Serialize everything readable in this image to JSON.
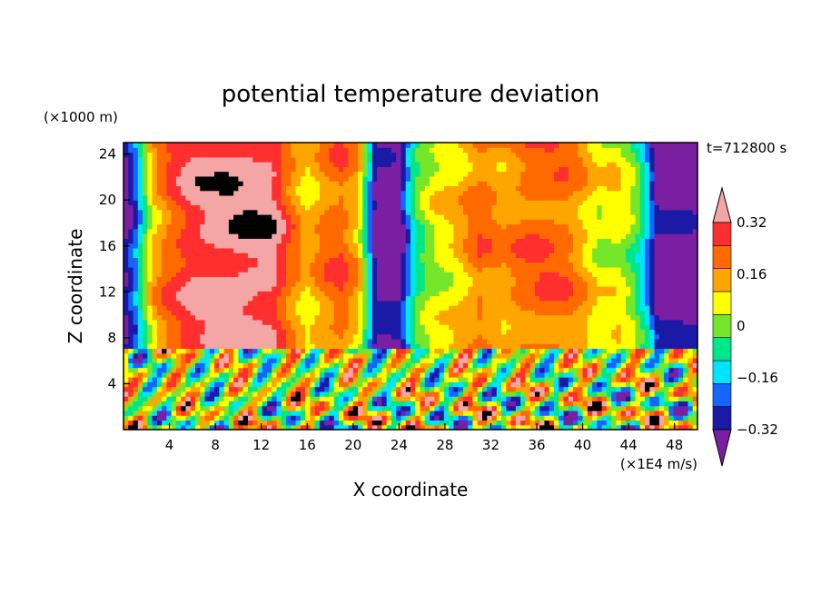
{
  "chart_data": {
    "type": "heatmap",
    "title": "potential temperature deviation",
    "xlabel": "X coordinate",
    "ylabel": "Z coordinate",
    "x_unit": "(×1E4 m/s)",
    "y_unit": "(×1000 m)",
    "time_label": "t=712800 s",
    "xlim": [
      0,
      50
    ],
    "ylim": [
      0,
      25
    ],
    "x_ticks": [
      "4",
      "8",
      "12",
      "16",
      "20",
      "24",
      "28",
      "32",
      "36",
      "40",
      "44",
      "48"
    ],
    "y_ticks": [
      "4",
      "8",
      "12",
      "16",
      "20",
      "24"
    ],
    "colorbar": {
      "levels": [
        -0.4,
        -0.32,
        -0.24,
        -0.16,
        -0.08,
        0,
        0.08,
        0.16,
        0.24,
        0.32,
        0.4
      ],
      "labels": [
        "0.32",
        "0.16",
        "0",
        "−0.16",
        "−0.32"
      ],
      "label_values": [
        0.32,
        0.16,
        0,
        -0.16,
        -0.32
      ],
      "colors": [
        "#7b1fa2",
        "#1a1aa6",
        "#1565ff",
        "#00e5ff",
        "#00e68c",
        "#76e62a",
        "#ffff00",
        "#ffa500",
        "#ff6a00",
        "#ff2f2f",
        "#f4a6a6"
      ]
    },
    "interface_z": 7,
    "upper_profile": {
      "description": "values above interface vary mainly with x",
      "x": [
        0,
        1,
        2.5,
        4,
        6,
        9,
        11,
        13,
        14.5,
        16,
        17.5,
        19,
        20.5,
        21.5,
        22,
        24,
        25.5,
        27,
        29,
        31,
        33,
        35,
        37,
        38.5,
        40,
        41.5,
        43,
        44.5,
        45.5,
        46.5,
        48,
        50
      ],
      "v": [
        -0.45,
        -0.3,
        0.1,
        0.22,
        0.32,
        0.36,
        0.37,
        0.35,
        0.2,
        0.08,
        0.18,
        0.22,
        0.1,
        -0.25,
        -0.45,
        -0.45,
        -0.1,
        0.02,
        0.08,
        0.2,
        0.14,
        0.2,
        0.22,
        0.2,
        0.12,
        0.02,
        0.05,
        -0.05,
        -0.2,
        -0.45,
        -0.45,
        -0.45
      ]
    }
  }
}
